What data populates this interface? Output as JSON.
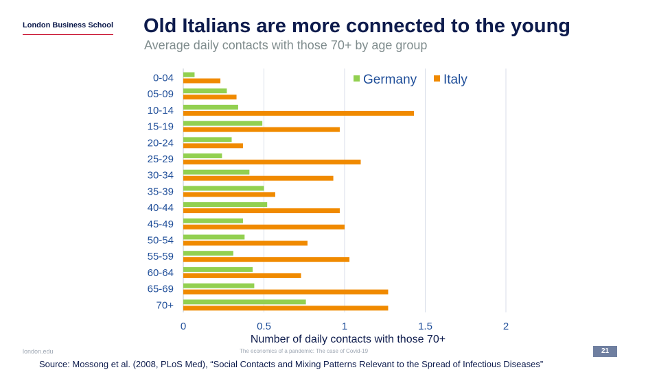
{
  "header": {
    "logo_text": "London Business School",
    "title": "Old Italians are more connected to the young",
    "subtitle": "Average daily contacts with those 70+ by age group"
  },
  "footer": {
    "website": "london.edu",
    "deck_title": "The economics of a pandemic: The case of Covid-19",
    "page_number": "21",
    "source": "Source: Mossong et al. (2008, PLoS Med), “Social Contacts and Mixing Patterns Relevant to the Spread of Infectious Diseases”"
  },
  "colors": {
    "germany": "#92d050",
    "italy": "#f08a00",
    "text_dark_blue": "#0d1b4c",
    "tick_blue": "#1f4e99",
    "grid": "#d9dee8"
  },
  "chart_data": {
    "type": "bar",
    "orientation": "horizontal",
    "categories": [
      "0-04",
      "05-09",
      "10-14",
      "15-19",
      "20-24",
      "25-29",
      "30-34",
      "35-39",
      "40-44",
      "45-49",
      "50-54",
      "55-59",
      "60-64",
      "65-69",
      "70+"
    ],
    "series": [
      {
        "name": "Germany",
        "values": [
          0.07,
          0.27,
          0.34,
          0.49,
          0.3,
          0.24,
          0.41,
          0.5,
          0.52,
          0.37,
          0.38,
          0.31,
          0.43,
          0.44,
          0.76
        ]
      },
      {
        "name": "Italy",
        "values": [
          0.23,
          0.33,
          1.43,
          0.97,
          0.37,
          1.1,
          0.93,
          0.57,
          0.97,
          1.0,
          0.77,
          1.03,
          0.73,
          1.27,
          1.27
        ]
      }
    ],
    "xlabel": "Number of daily contacts with those 70+",
    "xlim": [
      0,
      2
    ],
    "xticks": [
      "0",
      "0.5",
      "1",
      "1.5",
      "2"
    ],
    "grid": "vertical",
    "legend": "top-right"
  }
}
